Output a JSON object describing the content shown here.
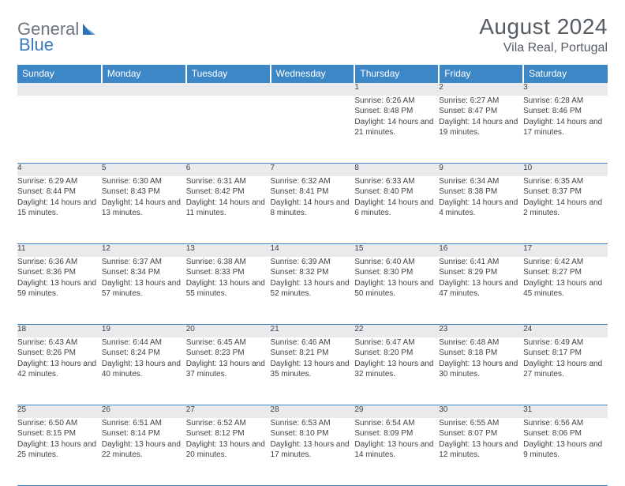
{
  "brand": {
    "part1": "General",
    "part2": "Blue",
    "accent_color": "#3d87c7",
    "text_color": "#6b7680"
  },
  "header": {
    "month_year": "August 2024",
    "location": "Vila Real, Portugal"
  },
  "style": {
    "header_bg": "#3d87c7",
    "header_text": "#ffffff",
    "daynum_bg": "#e9eaec",
    "border_color": "#3d87c7",
    "body_text": "#3e4449",
    "font_family": "Arial",
    "title_fontsize": 28,
    "location_fontsize": 16,
    "weekday_fontsize": 12,
    "cell_fontsize": 10
  },
  "weekdays": [
    "Sunday",
    "Monday",
    "Tuesday",
    "Wednesday",
    "Thursday",
    "Friday",
    "Saturday"
  ],
  "weeks": [
    [
      {
        "n": "",
        "sunrise": "",
        "sunset": "",
        "daylight": ""
      },
      {
        "n": "",
        "sunrise": "",
        "sunset": "",
        "daylight": ""
      },
      {
        "n": "",
        "sunrise": "",
        "sunset": "",
        "daylight": ""
      },
      {
        "n": "",
        "sunrise": "",
        "sunset": "",
        "daylight": ""
      },
      {
        "n": "1",
        "sunrise": "Sunrise: 6:26 AM",
        "sunset": "Sunset: 8:48 PM",
        "daylight": "Daylight: 14 hours and 21 minutes."
      },
      {
        "n": "2",
        "sunrise": "Sunrise: 6:27 AM",
        "sunset": "Sunset: 8:47 PM",
        "daylight": "Daylight: 14 hours and 19 minutes."
      },
      {
        "n": "3",
        "sunrise": "Sunrise: 6:28 AM",
        "sunset": "Sunset: 8:46 PM",
        "daylight": "Daylight: 14 hours and 17 minutes."
      }
    ],
    [
      {
        "n": "4",
        "sunrise": "Sunrise: 6:29 AM",
        "sunset": "Sunset: 8:44 PM",
        "daylight": "Daylight: 14 hours and 15 minutes."
      },
      {
        "n": "5",
        "sunrise": "Sunrise: 6:30 AM",
        "sunset": "Sunset: 8:43 PM",
        "daylight": "Daylight: 14 hours and 13 minutes."
      },
      {
        "n": "6",
        "sunrise": "Sunrise: 6:31 AM",
        "sunset": "Sunset: 8:42 PM",
        "daylight": "Daylight: 14 hours and 11 minutes."
      },
      {
        "n": "7",
        "sunrise": "Sunrise: 6:32 AM",
        "sunset": "Sunset: 8:41 PM",
        "daylight": "Daylight: 14 hours and 8 minutes."
      },
      {
        "n": "8",
        "sunrise": "Sunrise: 6:33 AM",
        "sunset": "Sunset: 8:40 PM",
        "daylight": "Daylight: 14 hours and 6 minutes."
      },
      {
        "n": "9",
        "sunrise": "Sunrise: 6:34 AM",
        "sunset": "Sunset: 8:38 PM",
        "daylight": "Daylight: 14 hours and 4 minutes."
      },
      {
        "n": "10",
        "sunrise": "Sunrise: 6:35 AM",
        "sunset": "Sunset: 8:37 PM",
        "daylight": "Daylight: 14 hours and 2 minutes."
      }
    ],
    [
      {
        "n": "11",
        "sunrise": "Sunrise: 6:36 AM",
        "sunset": "Sunset: 8:36 PM",
        "daylight": "Daylight: 13 hours and 59 minutes."
      },
      {
        "n": "12",
        "sunrise": "Sunrise: 6:37 AM",
        "sunset": "Sunset: 8:34 PM",
        "daylight": "Daylight: 13 hours and 57 minutes."
      },
      {
        "n": "13",
        "sunrise": "Sunrise: 6:38 AM",
        "sunset": "Sunset: 8:33 PM",
        "daylight": "Daylight: 13 hours and 55 minutes."
      },
      {
        "n": "14",
        "sunrise": "Sunrise: 6:39 AM",
        "sunset": "Sunset: 8:32 PM",
        "daylight": "Daylight: 13 hours and 52 minutes."
      },
      {
        "n": "15",
        "sunrise": "Sunrise: 6:40 AM",
        "sunset": "Sunset: 8:30 PM",
        "daylight": "Daylight: 13 hours and 50 minutes."
      },
      {
        "n": "16",
        "sunrise": "Sunrise: 6:41 AM",
        "sunset": "Sunset: 8:29 PM",
        "daylight": "Daylight: 13 hours and 47 minutes."
      },
      {
        "n": "17",
        "sunrise": "Sunrise: 6:42 AM",
        "sunset": "Sunset: 8:27 PM",
        "daylight": "Daylight: 13 hours and 45 minutes."
      }
    ],
    [
      {
        "n": "18",
        "sunrise": "Sunrise: 6:43 AM",
        "sunset": "Sunset: 8:26 PM",
        "daylight": "Daylight: 13 hours and 42 minutes."
      },
      {
        "n": "19",
        "sunrise": "Sunrise: 6:44 AM",
        "sunset": "Sunset: 8:24 PM",
        "daylight": "Daylight: 13 hours and 40 minutes."
      },
      {
        "n": "20",
        "sunrise": "Sunrise: 6:45 AM",
        "sunset": "Sunset: 8:23 PM",
        "daylight": "Daylight: 13 hours and 37 minutes."
      },
      {
        "n": "21",
        "sunrise": "Sunrise: 6:46 AM",
        "sunset": "Sunset: 8:21 PM",
        "daylight": "Daylight: 13 hours and 35 minutes."
      },
      {
        "n": "22",
        "sunrise": "Sunrise: 6:47 AM",
        "sunset": "Sunset: 8:20 PM",
        "daylight": "Daylight: 13 hours and 32 minutes."
      },
      {
        "n": "23",
        "sunrise": "Sunrise: 6:48 AM",
        "sunset": "Sunset: 8:18 PM",
        "daylight": "Daylight: 13 hours and 30 minutes."
      },
      {
        "n": "24",
        "sunrise": "Sunrise: 6:49 AM",
        "sunset": "Sunset: 8:17 PM",
        "daylight": "Daylight: 13 hours and 27 minutes."
      }
    ],
    [
      {
        "n": "25",
        "sunrise": "Sunrise: 6:50 AM",
        "sunset": "Sunset: 8:15 PM",
        "daylight": "Daylight: 13 hours and 25 minutes."
      },
      {
        "n": "26",
        "sunrise": "Sunrise: 6:51 AM",
        "sunset": "Sunset: 8:14 PM",
        "daylight": "Daylight: 13 hours and 22 minutes."
      },
      {
        "n": "27",
        "sunrise": "Sunrise: 6:52 AM",
        "sunset": "Sunset: 8:12 PM",
        "daylight": "Daylight: 13 hours and 20 minutes."
      },
      {
        "n": "28",
        "sunrise": "Sunrise: 6:53 AM",
        "sunset": "Sunset: 8:10 PM",
        "daylight": "Daylight: 13 hours and 17 minutes."
      },
      {
        "n": "29",
        "sunrise": "Sunrise: 6:54 AM",
        "sunset": "Sunset: 8:09 PM",
        "daylight": "Daylight: 13 hours and 14 minutes."
      },
      {
        "n": "30",
        "sunrise": "Sunrise: 6:55 AM",
        "sunset": "Sunset: 8:07 PM",
        "daylight": "Daylight: 13 hours and 12 minutes."
      },
      {
        "n": "31",
        "sunrise": "Sunrise: 6:56 AM",
        "sunset": "Sunset: 8:06 PM",
        "daylight": "Daylight: 13 hours and 9 minutes."
      }
    ]
  ]
}
